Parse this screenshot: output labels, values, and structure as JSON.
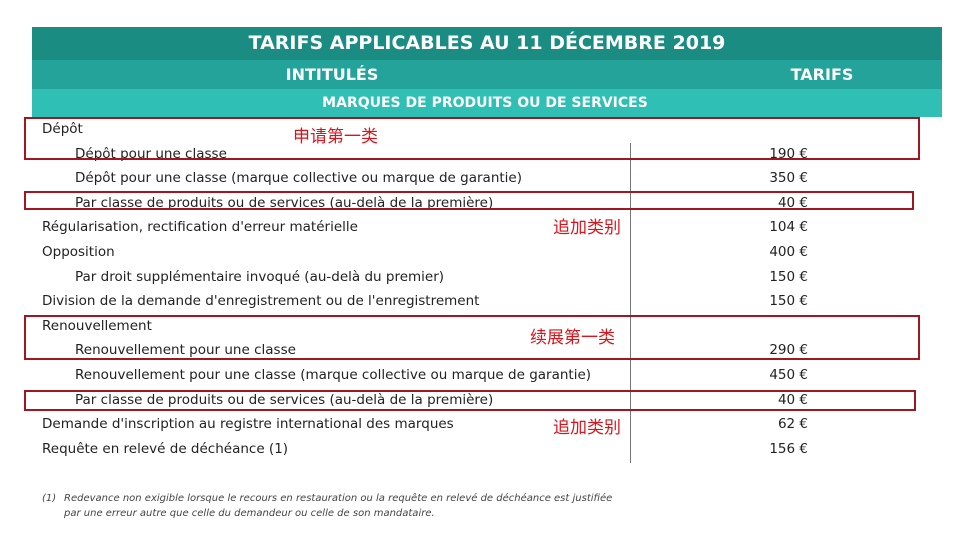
{
  "header": {
    "title": "TARIFS APPLICABLES AU  11 DÉCEMBRE 2019",
    "col_label": "INTITULÉS",
    "col_tarif": "TARIFS",
    "section": "MARQUES DE PRODUITS OU DE SERVICES"
  },
  "rows": [
    {
      "label": "Dépôt",
      "value": "",
      "indent": false
    },
    {
      "label": "Dépôt pour une classe",
      "value": "190 €",
      "indent": true
    },
    {
      "label": "Dépôt pour une classe (marque collective ou marque de garantie)",
      "value": "350 €",
      "indent": true
    },
    {
      "label": "Par classe de produits ou de services (au-delà de la première)",
      "value": "40 €",
      "indent": true
    },
    {
      "label": "Régularisation, rectification d'erreur matérielle",
      "value": "104 €",
      "indent": false
    },
    {
      "label": "Opposition",
      "value": "400 €",
      "indent": false
    },
    {
      "label": "Par droit supplémentaire invoqué (au-delà du premier)",
      "value": "150 €",
      "indent": true
    },
    {
      "label": "Division de la demande d'enregistrement ou de l'enregistrement",
      "value": "150 €",
      "indent": false
    },
    {
      "label": "Renouvellement",
      "value": "",
      "indent": false
    },
    {
      "label": "Renouvellement pour une classe",
      "value": "290 €",
      "indent": true
    },
    {
      "label": "Renouvellement pour une classe (marque collective ou marque de garantie)",
      "value": "450 €",
      "indent": true
    },
    {
      "label": "Par classe de produits ou de services (au-delà de la première)",
      "value": "40 €",
      "indent": true
    },
    {
      "label": "Demande d'inscription au registre international des marques",
      "value": "62 €",
      "indent": false
    },
    {
      "label": "Requête en relevé de déchéance (1)",
      "value": "156 €",
      "indent": false
    }
  ],
  "annotations": [
    "申请第一类",
    "追加类别",
    "续展第一类",
    "追加类别"
  ],
  "footnote": {
    "mark": "(1)",
    "text": "Redevance non exigible lorsque le recours en restauration ou la requête en relevé de déchéance est justifiée par une erreur autre que celle du demandeur ou celle de son mandataire."
  },
  "colors": {
    "header_dark": "#1b8c82",
    "header_mid": "#23a399",
    "header_light": "#30bfb4",
    "annotation": "#d8141c",
    "box": "#a11620"
  }
}
